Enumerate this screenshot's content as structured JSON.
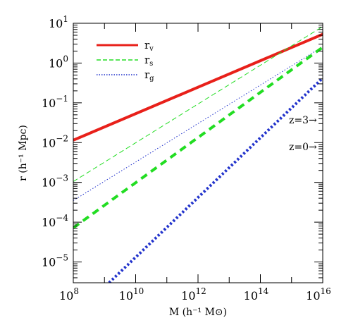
{
  "chart_data": {
    "type": "line",
    "xlabel": "M  (h⁻¹ M⊙)",
    "ylabel": "r  (h⁻¹ Mpc)",
    "xscale": "log",
    "yscale": "log",
    "xlim": [
      100000000.0,
      1e+16
    ],
    "ylim": [
      3e-06,
      10
    ],
    "x_ticks": [
      {
        "base": "10",
        "exp": "8",
        "value": 100000000.0
      },
      {
        "base": "10",
        "exp": "10",
        "value": 10000000000.0
      },
      {
        "base": "10",
        "exp": "12",
        "value": 1000000000000.0
      },
      {
        "base": "10",
        "exp": "14",
        "value": 100000000000000.0
      },
      {
        "base": "10",
        "exp": "16",
        "value": 1e+16
      }
    ],
    "y_ticks": [
      {
        "base": "10",
        "exp": "1",
        "value": 10
      },
      {
        "base": "10",
        "exp": "0",
        "value": 1
      },
      {
        "base": "10",
        "exp": "−1",
        "value": 0.1
      },
      {
        "base": "10",
        "exp": "−2",
        "value": 0.01
      },
      {
        "base": "10",
        "exp": "−3",
        "value": 0.001
      },
      {
        "base": "10",
        "exp": "−4",
        "value": 0.0001
      },
      {
        "base": "10",
        "exp": "−5",
        "value": 1e-05
      }
    ],
    "legend": {
      "placement": "top-left",
      "entries": [
        {
          "label": "r",
          "sub": "v",
          "color": "#e8201a",
          "dash": "solid"
        },
        {
          "label": "r",
          "sub": "s",
          "color": "#22dd22",
          "dash": "dashed"
        },
        {
          "label": "r",
          "sub": "g",
          "color": "#2233cc",
          "dash": "dotted"
        }
      ]
    },
    "series": [
      {
        "legend": "r_v",
        "color": "#e8201a",
        "dash": "solid",
        "width": 4,
        "x": [
          100000000.0,
          1e+16
        ],
        "y": [
          0.0115,
          5.3
        ]
      },
      {
        "legend": "r_s",
        "color": "#22dd22",
        "dash": "dashed",
        "width": 1,
        "x": [
          100000000.0,
          1e+16
        ],
        "y": [
          0.00105,
          8.3
        ]
      },
      {
        "legend": "r_g",
        "color": "#2233cc",
        "dash": "dotted",
        "width": 1,
        "x": [
          100000000.0,
          1e+16
        ],
        "y": [
          0.00035,
          2.6
        ]
      },
      {
        "legend": "r_s",
        "color": "#22dd22",
        "dash": "dashed",
        "width": 4,
        "x": [
          100000000.0,
          1e+16
        ],
        "y": [
          7.2e-05,
          2.5
        ]
      },
      {
        "legend": "r_g",
        "color": "#2233cc",
        "dash": "dotted",
        "width": 4,
        "x": [
          1400000000.0,
          1e+16
        ],
        "y": [
          3e-06,
          0.42
        ]
      }
    ],
    "annotations": [
      {
        "text": "z=3→"
      },
      {
        "text": "z=0→"
      }
    ],
    "grid": false
  }
}
